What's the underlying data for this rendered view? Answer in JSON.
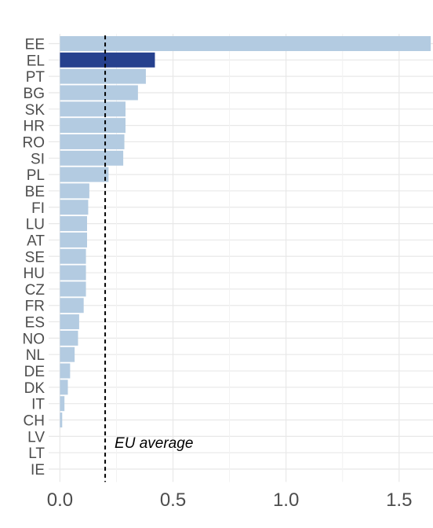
{
  "chart_data": {
    "type": "bar",
    "orientation": "horizontal",
    "categories": [
      "EE",
      "EL",
      "PT",
      "BG",
      "SK",
      "HR",
      "RO",
      "SI",
      "PL",
      "BE",
      "FI",
      "LU",
      "AT",
      "SE",
      "HU",
      "CZ",
      "FR",
      "ES",
      "NO",
      "NL",
      "DE",
      "DK",
      "IT",
      "CH",
      "LV",
      "LT",
      "IE"
    ],
    "values": [
      1.64,
      0.42,
      0.38,
      0.345,
      0.29,
      0.29,
      0.285,
      0.28,
      0.215,
      0.13,
      0.125,
      0.12,
      0.12,
      0.115,
      0.115,
      0.115,
      0.105,
      0.085,
      0.08,
      0.065,
      0.045,
      0.035,
      0.02,
      0.01,
      0.0,
      0.0,
      0.0
    ],
    "highlight": "EL",
    "reference_line": {
      "value": 0.2,
      "label": "EU average",
      "style": "dashed"
    },
    "xlim": [
      -0.05,
      1.65
    ],
    "xticks": [
      0.0,
      0.5,
      1.0,
      1.5
    ],
    "xtick_labels": [
      "0.0",
      "0.5",
      "1.0",
      "1.5"
    ],
    "title": "",
    "xlabel": "",
    "ylabel": "",
    "grid": true,
    "colors": {
      "bar": "#b3cbe1",
      "highlight": "#26418e",
      "grid_major": "#e8e8e8",
      "grid_minor": "#f2f2f2",
      "text": "#4d4d4d",
      "reference_line": "#000000",
      "background": "#ffffff"
    }
  }
}
